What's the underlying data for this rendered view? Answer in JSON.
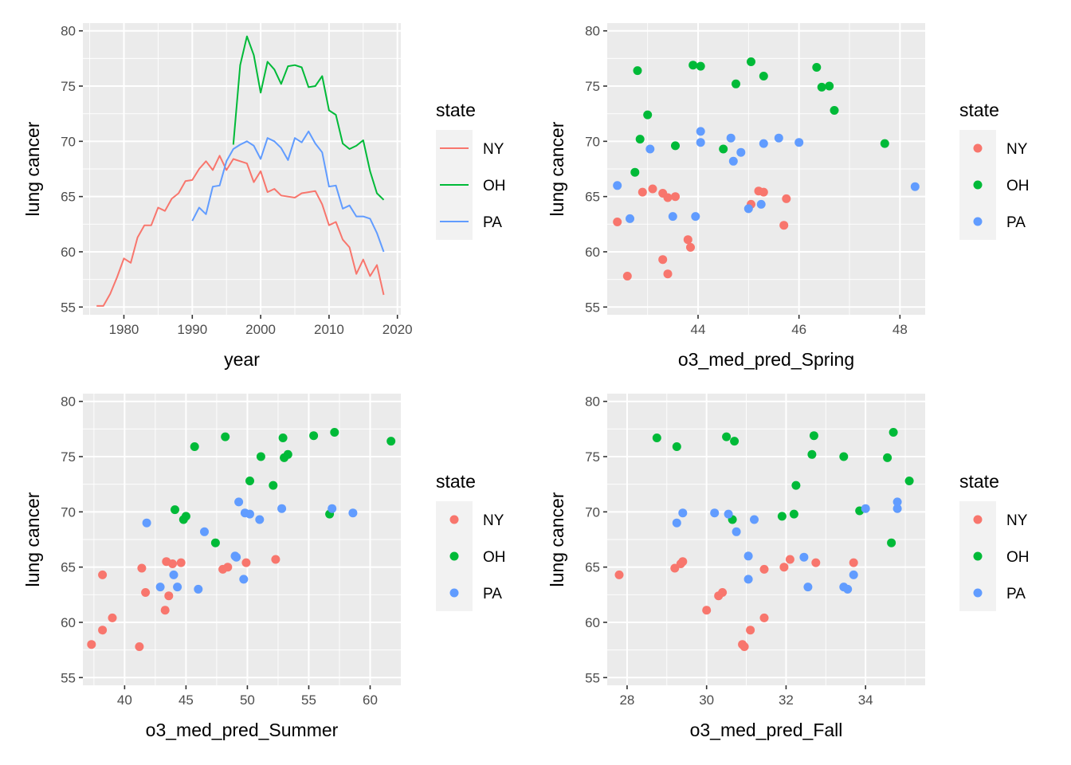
{
  "chart_data": [
    {
      "type": "line",
      "xlabel": "year",
      "ylabel": "lung cancer",
      "xlim": [
        1974,
        2020.5
      ],
      "ylim": [
        54.3,
        80.7
      ],
      "xticks": [
        1980,
        1990,
        2000,
        2010,
        2020
      ],
      "yticks": [
        55,
        60,
        65,
        70,
        75,
        80
      ],
      "grid": true,
      "legend": {
        "title": "state",
        "position": "right",
        "entries": [
          "NY",
          "OH",
          "PA"
        ]
      },
      "series": [
        {
          "name": "NY",
          "color": "#F8766D",
          "x": [
            1976,
            1977,
            1978,
            1979,
            1980,
            1981,
            1982,
            1983,
            1984,
            1985,
            1986,
            1987,
            1988,
            1989,
            1990,
            1991,
            1992,
            1993,
            1994,
            1995,
            1996,
            1997,
            1998,
            1999,
            2000,
            2001,
            2002,
            2003,
            2004,
            2005,
            2006,
            2007,
            2008,
            2009,
            2010,
            2011,
            2012,
            2013,
            2014,
            2015,
            2016,
            2017,
            2018
          ],
          "y": [
            55.1,
            55.1,
            56.2,
            57.7,
            59.4,
            59.0,
            61.3,
            62.4,
            62.4,
            64.0,
            63.7,
            64.8,
            65.3,
            66.4,
            66.5,
            67.5,
            68.2,
            67.4,
            68.7,
            67.4,
            68.4,
            68.2,
            68.0,
            66.3,
            67.3,
            65.4,
            65.7,
            65.1,
            65.0,
            64.9,
            65.3,
            65.4,
            65.5,
            64.3,
            62.4,
            62.7,
            61.1,
            60.4,
            58.0,
            59.3,
            57.8,
            58.8,
            56.1
          ]
        },
        {
          "name": "OH",
          "color": "#00BA38",
          "x": [
            1996,
            1997,
            1998,
            1999,
            2000,
            2001,
            2002,
            2003,
            2004,
            2005,
            2006,
            2007,
            2008,
            2009,
            2010,
            2011,
            2012,
            2013,
            2014,
            2015,
            2016,
            2017,
            2018
          ],
          "y": [
            69.7,
            76.9,
            79.5,
            77.8,
            74.4,
            77.2,
            76.5,
            75.2,
            76.8,
            76.9,
            76.7,
            74.9,
            75.0,
            75.9,
            72.8,
            72.4,
            69.8,
            69.3,
            69.6,
            70.1,
            67.3,
            65.3,
            64.7
          ]
        },
        {
          "name": "PA",
          "color": "#619CFF",
          "x": [
            1990,
            1991,
            1992,
            1993,
            1994,
            1995,
            1996,
            1997,
            1998,
            1999,
            2000,
            2001,
            2002,
            2003,
            2004,
            2005,
            2006,
            2007,
            2008,
            2009,
            2010,
            2011,
            2012,
            2013,
            2014,
            2015,
            2016,
            2017,
            2018
          ],
          "y": [
            62.8,
            64.0,
            63.4,
            65.9,
            66.0,
            68.2,
            69.3,
            69.7,
            70.0,
            69.6,
            68.4,
            70.3,
            70.0,
            69.4,
            68.3,
            70.3,
            69.9,
            70.9,
            69.8,
            69.0,
            65.9,
            66.0,
            63.9,
            64.2,
            63.2,
            63.2,
            63.0,
            61.7,
            60.0
          ]
        }
      ]
    },
    {
      "type": "scatter",
      "xlabel": "o3_med_pred_Spring",
      "ylabel": "lung cancer",
      "xlim": [
        42.2,
        48.5
      ],
      "ylim": [
        54.3,
        80.7
      ],
      "xticks": [
        44,
        46,
        48
      ],
      "yticks": [
        55,
        60,
        65,
        70,
        75,
        80
      ],
      "grid": true,
      "legend": {
        "title": "state",
        "position": "right",
        "entries": [
          "NY",
          "OH",
          "PA"
        ]
      },
      "series": [
        {
          "name": "NY",
          "color": "#F8766D",
          "points": [
            [
              42.4,
              62.7
            ],
            [
              42.6,
              57.8
            ],
            [
              42.9,
              65.4
            ],
            [
              43.1,
              65.7
            ],
            [
              43.3,
              65.3
            ],
            [
              43.3,
              59.3
            ],
            [
              43.4,
              64.9
            ],
            [
              43.4,
              58.0
            ],
            [
              43.55,
              65.0
            ],
            [
              43.8,
              61.1
            ],
            [
              43.85,
              60.4
            ],
            [
              45.05,
              64.3
            ],
            [
              45.2,
              65.5
            ],
            [
              45.3,
              65.4
            ],
            [
              45.7,
              62.4
            ],
            [
              45.75,
              64.8
            ]
          ]
        },
        {
          "name": "OH",
          "color": "#00BA38",
          "points": [
            [
              42.75,
              67.2
            ],
            [
              42.8,
              76.4
            ],
            [
              42.85,
              70.2
            ],
            [
              43.0,
              72.4
            ],
            [
              43.55,
              69.6
            ],
            [
              43.9,
              76.9
            ],
            [
              44.05,
              76.8
            ],
            [
              44.5,
              69.3
            ],
            [
              44.75,
              75.2
            ],
            [
              45.05,
              77.2
            ],
            [
              45.3,
              75.9
            ],
            [
              46.35,
              76.7
            ],
            [
              46.45,
              74.9
            ],
            [
              46.6,
              75.0
            ],
            [
              46.7,
              72.8
            ],
            [
              47.7,
              69.8
            ]
          ]
        },
        {
          "name": "PA",
          "color": "#619CFF",
          "points": [
            [
              42.4,
              66.0
            ],
            [
              42.65,
              63.0
            ],
            [
              43.05,
              69.3
            ],
            [
              43.5,
              63.2
            ],
            [
              43.95,
              63.2
            ],
            [
              44.05,
              70.9
            ],
            [
              44.05,
              69.9
            ],
            [
              44.65,
              70.3
            ],
            [
              44.7,
              68.2
            ],
            [
              44.85,
              69.0
            ],
            [
              45.0,
              63.9
            ],
            [
              45.25,
              64.3
            ],
            [
              45.3,
              69.8
            ],
            [
              45.6,
              70.3
            ],
            [
              46.0,
              69.9
            ],
            [
              48.3,
              65.9
            ]
          ]
        }
      ]
    },
    {
      "type": "scatter",
      "xlabel": "o3_med_pred_Summer",
      "ylabel": "lung cancer",
      "xlim": [
        36.6,
        62.5
      ],
      "ylim": [
        54.3,
        80.7
      ],
      "xticks": [
        40,
        45,
        50,
        55,
        60
      ],
      "yticks": [
        55,
        60,
        65,
        70,
        75,
        80
      ],
      "grid": true,
      "legend": {
        "title": "state",
        "position": "right",
        "entries": [
          "NY",
          "OH",
          "PA"
        ]
      },
      "series": [
        {
          "name": "NY",
          "color": "#F8766D",
          "points": [
            [
              37.3,
              58.0
            ],
            [
              38.2,
              64.3
            ],
            [
              38.2,
              59.3
            ],
            [
              39.0,
              60.4
            ],
            [
              41.2,
              57.8
            ],
            [
              41.4,
              64.9
            ],
            [
              41.7,
              62.7
            ],
            [
              43.3,
              61.1
            ],
            [
              43.4,
              65.5
            ],
            [
              43.6,
              62.4
            ],
            [
              43.9,
              65.3
            ],
            [
              44.6,
              65.4
            ],
            [
              48.0,
              64.8
            ],
            [
              48.4,
              65.0
            ],
            [
              49.9,
              65.4
            ],
            [
              52.3,
              65.7
            ]
          ]
        },
        {
          "name": "OH",
          "color": "#00BA38",
          "points": [
            [
              44.1,
              70.2
            ],
            [
              44.8,
              69.3
            ],
            [
              45.0,
              69.6
            ],
            [
              45.7,
              75.9
            ],
            [
              47.4,
              67.2
            ],
            [
              48.2,
              76.8
            ],
            [
              50.2,
              72.8
            ],
            [
              51.1,
              75.0
            ],
            [
              52.1,
              72.4
            ],
            [
              52.9,
              76.7
            ],
            [
              53.0,
              74.9
            ],
            [
              53.3,
              75.2
            ],
            [
              55.4,
              76.9
            ],
            [
              56.7,
              69.8
            ],
            [
              57.1,
              77.2
            ],
            [
              61.7,
              76.4
            ]
          ]
        },
        {
          "name": "PA",
          "color": "#619CFF",
          "points": [
            [
              41.8,
              69.0
            ],
            [
              42.9,
              63.2
            ],
            [
              44.0,
              64.3
            ],
            [
              44.3,
              63.2
            ],
            [
              46.0,
              63.0
            ],
            [
              46.5,
              68.2
            ],
            [
              49.0,
              66.0
            ],
            [
              49.1,
              65.9
            ],
            [
              49.3,
              70.9
            ],
            [
              49.7,
              63.9
            ],
            [
              49.8,
              69.9
            ],
            [
              50.2,
              69.8
            ],
            [
              51.0,
              69.3
            ],
            [
              52.8,
              70.3
            ],
            [
              56.9,
              70.3
            ],
            [
              58.6,
              69.9
            ]
          ]
        }
      ]
    },
    {
      "type": "scatter",
      "xlabel": "o3_med_pred_Fall",
      "ylabel": "lung cancer",
      "xlim": [
        27.5,
        35.5
      ],
      "ylim": [
        54.3,
        80.7
      ],
      "xticks": [
        28,
        30,
        32,
        34
      ],
      "yticks": [
        55,
        60,
        65,
        70,
        75,
        80
      ],
      "grid": true,
      "legend": {
        "title": "state",
        "position": "right",
        "entries": [
          "NY",
          "OH",
          "PA"
        ]
      },
      "series": [
        {
          "name": "NY",
          "color": "#F8766D",
          "points": [
            [
              27.8,
              64.3
            ],
            [
              29.2,
              64.9
            ],
            [
              29.35,
              65.3
            ],
            [
              29.4,
              65.5
            ],
            [
              30.0,
              61.1
            ],
            [
              30.3,
              62.4
            ],
            [
              30.4,
              62.7
            ],
            [
              30.9,
              58.0
            ],
            [
              30.95,
              57.8
            ],
            [
              31.1,
              59.3
            ],
            [
              31.45,
              60.4
            ],
            [
              31.45,
              64.8
            ],
            [
              31.95,
              65.0
            ],
            [
              32.1,
              65.7
            ],
            [
              32.75,
              65.4
            ],
            [
              33.7,
              65.4
            ]
          ]
        },
        {
          "name": "OH",
          "color": "#00BA38",
          "points": [
            [
              28.75,
              76.7
            ],
            [
              29.25,
              75.9
            ],
            [
              30.5,
              76.8
            ],
            [
              30.65,
              69.3
            ],
            [
              30.7,
              76.4
            ],
            [
              31.9,
              69.6
            ],
            [
              32.2,
              69.8
            ],
            [
              32.25,
              72.4
            ],
            [
              32.65,
              75.2
            ],
            [
              32.7,
              76.9
            ],
            [
              33.45,
              75.0
            ],
            [
              33.85,
              70.1
            ],
            [
              34.55,
              74.9
            ],
            [
              34.65,
              67.2
            ],
            [
              34.7,
              77.2
            ],
            [
              35.1,
              72.8
            ]
          ]
        },
        {
          "name": "PA",
          "color": "#619CFF",
          "points": [
            [
              29.25,
              69.0
            ],
            [
              29.4,
              69.9
            ],
            [
              30.2,
              69.9
            ],
            [
              30.55,
              69.8
            ],
            [
              30.75,
              68.2
            ],
            [
              31.05,
              66.0
            ],
            [
              31.05,
              63.9
            ],
            [
              31.2,
              69.3
            ],
            [
              32.45,
              65.9
            ],
            [
              32.55,
              63.2
            ],
            [
              33.45,
              63.2
            ],
            [
              33.55,
              63.0
            ],
            [
              33.7,
              64.3
            ],
            [
              34.0,
              70.3
            ],
            [
              34.8,
              70.9
            ],
            [
              34.8,
              70.3
            ]
          ]
        }
      ]
    }
  ]
}
